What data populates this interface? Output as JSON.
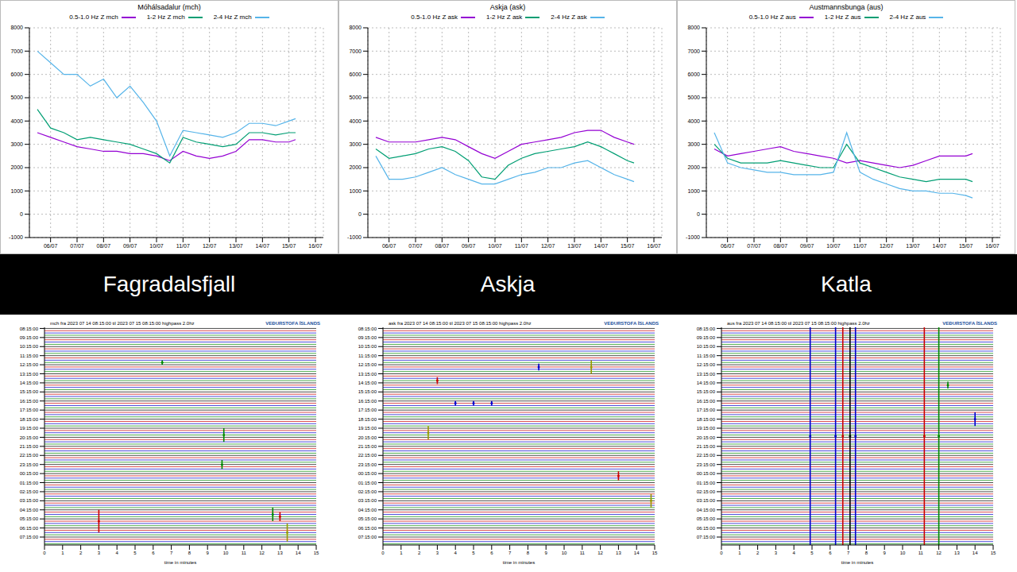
{
  "panel_labels": [
    "Fagradalsfjall",
    "Askja",
    "Katla"
  ],
  "chart_data": [
    {
      "type": "line",
      "title": "Móhálsadalur (mch)",
      "grid": true,
      "legend": "top",
      "x": [
        5.5,
        6,
        6.5,
        7,
        7.5,
        8,
        8.5,
        9,
        9.5,
        10,
        10.5,
        11,
        11.5,
        12,
        12.5,
        13,
        13.5,
        14,
        14.5,
        15,
        15.25
      ],
      "xlim": [
        5.2,
        16.3
      ],
      "xticks": [
        {
          "value": 6,
          "label": "06/07"
        },
        {
          "value": 7,
          "label": "07/07"
        },
        {
          "value": 8,
          "label": "08/07"
        },
        {
          "value": 9,
          "label": "09/07"
        },
        {
          "value": 10,
          "label": "10/07"
        },
        {
          "value": 11,
          "label": "11/07"
        },
        {
          "value": 12,
          "label": "12/07"
        },
        {
          "value": 13,
          "label": "13/07"
        },
        {
          "value": 14,
          "label": "14/07"
        },
        {
          "value": 15,
          "label": "15/07"
        },
        {
          "value": 16,
          "label": "16/07"
        }
      ],
      "ylim": [
        -1000,
        8000
      ],
      "yticks": [
        -1000,
        0,
        1000,
        2000,
        3000,
        4000,
        5000,
        6000,
        7000,
        8000
      ],
      "series": [
        {
          "name": "0.5-1.0 Hz Z mch",
          "color": "#9400d3",
          "values": [
            3500,
            3300,
            3100,
            2900,
            2800,
            2700,
            2700,
            2600,
            2600,
            2500,
            2300,
            2700,
            2500,
            2400,
            2500,
            2700,
            3200,
            3200,
            3100,
            3100,
            3200
          ]
        },
        {
          "name": "1-2 Hz Z mch",
          "color": "#009e73",
          "values": [
            4500,
            3700,
            3500,
            3200,
            3300,
            3200,
            3100,
            3000,
            2800,
            2600,
            2200,
            3300,
            3100,
            3000,
            2900,
            3000,
            3500,
            3500,
            3400,
            3500,
            3500
          ]
        },
        {
          "name": "2-4 Hz Z mch",
          "color": "#56b4e9",
          "values": [
            7000,
            6500,
            6000,
            6000,
            5500,
            5800,
            5000,
            5500,
            4800,
            4000,
            2500,
            3600,
            3500,
            3400,
            3300,
            3500,
            3900,
            3900,
            3800,
            4000,
            4100
          ]
        }
      ]
    },
    {
      "type": "line",
      "title": "Askja (ask)",
      "grid": true,
      "legend": "top",
      "x": [
        5.5,
        6,
        6.5,
        7,
        7.5,
        8,
        8.5,
        9,
        9.5,
        10,
        10.5,
        11,
        11.5,
        12,
        12.5,
        13,
        13.5,
        14,
        14.5,
        15,
        15.25
      ],
      "xlim": [
        5.2,
        16.3
      ],
      "xticks": [
        {
          "value": 6,
          "label": "06/07"
        },
        {
          "value": 7,
          "label": "07/07"
        },
        {
          "value": 8,
          "label": "08/07"
        },
        {
          "value": 9,
          "label": "09/07"
        },
        {
          "value": 10,
          "label": "10/07"
        },
        {
          "value": 11,
          "label": "11/07"
        },
        {
          "value": 12,
          "label": "12/07"
        },
        {
          "value": 13,
          "label": "13/07"
        },
        {
          "value": 14,
          "label": "14/07"
        },
        {
          "value": 15,
          "label": "15/07"
        },
        {
          "value": 16,
          "label": "16/07"
        }
      ],
      "ylim": [
        -1000,
        8000
      ],
      "yticks": [
        -1000,
        0,
        1000,
        2000,
        3000,
        4000,
        5000,
        6000,
        7000,
        8000
      ],
      "series": [
        {
          "name": "0.5-1.0 Hz Z ask",
          "color": "#9400d3",
          "values": [
            3300,
            3100,
            3100,
            3100,
            3200,
            3300,
            3200,
            2900,
            2600,
            2400,
            2700,
            3000,
            3100,
            3200,
            3300,
            3500,
            3600,
            3600,
            3300,
            3100,
            3000
          ]
        },
        {
          "name": "1-2 Hz Z ask",
          "color": "#009e73",
          "values": [
            2800,
            2400,
            2500,
            2600,
            2800,
            2900,
            2700,
            2300,
            1600,
            1500,
            2100,
            2400,
            2600,
            2700,
            2800,
            2900,
            3100,
            2900,
            2600,
            2300,
            2200
          ]
        },
        {
          "name": "2-4 Hz Z ask",
          "color": "#56b4e9",
          "values": [
            2500,
            1500,
            1500,
            1600,
            1800,
            2000,
            1700,
            1500,
            1300,
            1300,
            1500,
            1700,
            1800,
            2000,
            2000,
            2200,
            2300,
            2000,
            1700,
            1500,
            1400
          ]
        }
      ]
    },
    {
      "type": "line",
      "title": "Austmannsbunga (aus)",
      "grid": true,
      "legend": "top",
      "x": [
        5.5,
        6,
        6.5,
        7,
        7.5,
        8,
        8.5,
        9,
        9.5,
        10,
        10.5,
        11,
        11.5,
        12,
        12.5,
        13,
        13.5,
        14,
        14.5,
        15,
        15.25
      ],
      "xlim": [
        5.2,
        16.3
      ],
      "xticks": [
        {
          "value": 6,
          "label": "06/07"
        },
        {
          "value": 7,
          "label": "07/07"
        },
        {
          "value": 8,
          "label": "08/07"
        },
        {
          "value": 9,
          "label": "09/07"
        },
        {
          "value": 10,
          "label": "10/07"
        },
        {
          "value": 11,
          "label": "11/07"
        },
        {
          "value": 12,
          "label": "12/07"
        },
        {
          "value": 13,
          "label": "13/07"
        },
        {
          "value": 14,
          "label": "14/07"
        },
        {
          "value": 15,
          "label": "15/07"
        },
        {
          "value": 16,
          "label": "16/07"
        }
      ],
      "ylim": [
        -1000,
        8000
      ],
      "yticks": [
        -1000,
        0,
        1000,
        2000,
        3000,
        4000,
        5000,
        6000,
        7000,
        8000
      ],
      "series": [
        {
          "name": "0.5-1.0 Hz Z aus",
          "color": "#9400d3",
          "values": [
            2800,
            2500,
            2600,
            2700,
            2800,
            2900,
            2700,
            2600,
            2500,
            2400,
            2200,
            2300,
            2200,
            2100,
            2000,
            2100,
            2300,
            2500,
            2500,
            2500,
            2600
          ]
        },
        {
          "name": "1-2 Hz Z aus",
          "color": "#009e73",
          "values": [
            3000,
            2400,
            2200,
            2200,
            2200,
            2300,
            2200,
            2100,
            2000,
            2000,
            3000,
            2200,
            2000,
            1800,
            1600,
            1500,
            1400,
            1500,
            1500,
            1500,
            1400
          ]
        },
        {
          "name": "2-4 Hz Z aus",
          "color": "#56b4e9",
          "values": [
            3500,
            2200,
            2000,
            1900,
            1800,
            1800,
            1700,
            1700,
            1700,
            1800,
            3500,
            1800,
            1500,
            1300,
            1100,
            1000,
            1000,
            900,
            900,
            800,
            700
          ]
        }
      ]
    },
    {
      "type": "helicorder",
      "title": "mch fra 2023 07 14 08:15:00 til 2023 07 15 08:15:00 highpass 2.0hz",
      "logo": "VEÐURSTOFA ÍSLANDS",
      "xlabel": "time in minutes",
      "xlim": [
        0,
        15
      ],
      "xticks": [
        0,
        1,
        2,
        3,
        4,
        5,
        6,
        7,
        8,
        9,
        10,
        11,
        12,
        13,
        14,
        15
      ],
      "ylim": [
        -0.5,
        95.5
      ],
      "yticks": [
        {
          "value": 0,
          "label": "08:15:00"
        },
        {
          "value": 4,
          "label": "09:15:00"
        },
        {
          "value": 8,
          "label": "10:15:00"
        },
        {
          "value": 12,
          "label": "11:15:00"
        },
        {
          "value": 16,
          "label": "12:15:00"
        },
        {
          "value": 20,
          "label": "13:15:00"
        },
        {
          "value": 24,
          "label": "14:15:00"
        },
        {
          "value": 28,
          "label": "15:15:00"
        },
        {
          "value": 32,
          "label": "16:15:00"
        },
        {
          "value": 36,
          "label": "17:15:00"
        },
        {
          "value": 40,
          "label": "18:15:00"
        },
        {
          "value": 44,
          "label": "19:15:00"
        },
        {
          "value": 48,
          "label": "20:15:00"
        },
        {
          "value": 52,
          "label": "21:15:00"
        },
        {
          "value": 56,
          "label": "22:15:00"
        },
        {
          "value": 60,
          "label": "23:15:00"
        },
        {
          "value": 64,
          "label": "00:15:00"
        },
        {
          "value": 68,
          "label": "01:15:00"
        },
        {
          "value": 72,
          "label": "02:15:00"
        },
        {
          "value": 76,
          "label": "03:15:00"
        },
        {
          "value": 80,
          "label": "04:15:00"
        },
        {
          "value": 84,
          "label": "05:15:00"
        },
        {
          "value": 88,
          "label": "06:15:00"
        },
        {
          "value": 92,
          "label": "07:15:00"
        }
      ],
      "colors": [
        "#000000",
        "#cc0000",
        "#0000cc",
        "#008800"
      ],
      "events": [
        {
          "row": 15,
          "minute": 6.5,
          "amplitude": 1,
          "color": "#008800"
        },
        {
          "row": 47,
          "minute": 9.9,
          "amplitude": 3,
          "color": "#008800"
        },
        {
          "row": 60,
          "minute": 9.8,
          "amplitude": 2,
          "color": "#008800"
        },
        {
          "row": 85,
          "minute": 3,
          "amplitude": 5,
          "color": "#cc0000"
        },
        {
          "row": 82,
          "minute": 12.6,
          "amplitude": 3,
          "color": "#008800"
        },
        {
          "row": 83,
          "minute": 13,
          "amplitude": 2,
          "color": "#cc0000"
        },
        {
          "row": 90,
          "minute": 13.4,
          "amplitude": 4,
          "color": "#999900"
        }
      ]
    },
    {
      "type": "helicorder",
      "title": "ask fra 2023 07 14 08:15:00 til 2023 07 15 08:15:00 highpass 2.0hz",
      "logo": "VEÐURSTOFA ÍSLANDS",
      "xlabel": "time in minutes",
      "xlim": [
        0,
        15
      ],
      "xticks": [
        0,
        1,
        2,
        3,
        4,
        5,
        6,
        7,
        8,
        9,
        10,
        11,
        12,
        13,
        14,
        15
      ],
      "ylim": [
        -0.5,
        95.5
      ],
      "yticks": [
        {
          "value": 0,
          "label": "08:15:00"
        },
        {
          "value": 4,
          "label": "09:15:00"
        },
        {
          "value": 8,
          "label": "10:15:00"
        },
        {
          "value": 12,
          "label": "11:15:00"
        },
        {
          "value": 16,
          "label": "12:15:00"
        },
        {
          "value": 20,
          "label": "13:15:00"
        },
        {
          "value": 24,
          "label": "14:15:00"
        },
        {
          "value": 28,
          "label": "15:15:00"
        },
        {
          "value": 32,
          "label": "16:15:00"
        },
        {
          "value": 36,
          "label": "17:15:00"
        },
        {
          "value": 40,
          "label": "18:15:00"
        },
        {
          "value": 44,
          "label": "19:15:00"
        },
        {
          "value": 48,
          "label": "20:15:00"
        },
        {
          "value": 52,
          "label": "21:15:00"
        },
        {
          "value": 56,
          "label": "22:15:00"
        },
        {
          "value": 60,
          "label": "23:15:00"
        },
        {
          "value": 64,
          "label": "00:15:00"
        },
        {
          "value": 68,
          "label": "01:15:00"
        },
        {
          "value": 72,
          "label": "02:15:00"
        },
        {
          "value": 76,
          "label": "03:15:00"
        },
        {
          "value": 80,
          "label": "04:15:00"
        },
        {
          "value": 84,
          "label": "05:15:00"
        },
        {
          "value": 88,
          "label": "06:15:00"
        },
        {
          "value": 92,
          "label": "07:15:00"
        }
      ],
      "colors": [
        "#000000",
        "#cc0000",
        "#0000cc",
        "#008800"
      ],
      "events": [
        {
          "row": 17,
          "minute": 11.5,
          "amplitude": 3,
          "color": "#999900"
        },
        {
          "row": 17,
          "minute": 8.6,
          "amplitude": 1.5,
          "color": "#0000cc"
        },
        {
          "row": 23,
          "minute": 3,
          "amplitude": 1.5,
          "color": "#cc0000"
        },
        {
          "row": 33,
          "minute": 4,
          "amplitude": 1,
          "color": "#0000cc"
        },
        {
          "row": 33,
          "minute": 5,
          "amplitude": 1,
          "color": "#0000cc"
        },
        {
          "row": 33,
          "minute": 6,
          "amplitude": 1,
          "color": "#0000cc"
        },
        {
          "row": 46,
          "minute": 2.5,
          "amplitude": 3,
          "color": "#999900"
        },
        {
          "row": 65,
          "minute": 13,
          "amplitude": 2,
          "color": "#cc0000"
        },
        {
          "row": 76,
          "minute": 14.8,
          "amplitude": 3,
          "color": "#999900"
        }
      ]
    },
    {
      "type": "helicorder",
      "title": "aus fra 2023 07 14 08:15:00 til 2023 07 15 08:15:00 highpass 2.0hz",
      "logo": "VEÐURSTOFA ÍSLANDS",
      "xlabel": "time in minutes",
      "xlim": [
        0,
        15
      ],
      "xticks": [
        0,
        1,
        2,
        3,
        4,
        5,
        6,
        7,
        8,
        9,
        10,
        11,
        12,
        13,
        14,
        15
      ],
      "ylim": [
        -0.5,
        95.5
      ],
      "yticks": [
        {
          "value": 0,
          "label": "08:15:00"
        },
        {
          "value": 4,
          "label": "09:15:00"
        },
        {
          "value": 8,
          "label": "10:15:00"
        },
        {
          "value": 12,
          "label": "11:15:00"
        },
        {
          "value": 16,
          "label": "12:15:00"
        },
        {
          "value": 20,
          "label": "13:15:00"
        },
        {
          "value": 24,
          "label": "14:15:00"
        },
        {
          "value": 28,
          "label": "15:15:00"
        },
        {
          "value": 32,
          "label": "16:15:00"
        },
        {
          "value": 36,
          "label": "17:15:00"
        },
        {
          "value": 40,
          "label": "18:15:00"
        },
        {
          "value": 44,
          "label": "19:15:00"
        },
        {
          "value": 48,
          "label": "20:15:00"
        },
        {
          "value": 52,
          "label": "21:15:00"
        },
        {
          "value": 56,
          "label": "22:15:00"
        },
        {
          "value": 60,
          "label": "23:15:00"
        },
        {
          "value": 64,
          "label": "00:15:00"
        },
        {
          "value": 68,
          "label": "01:15:00"
        },
        {
          "value": 72,
          "label": "02:15:00"
        },
        {
          "value": 76,
          "label": "03:15:00"
        },
        {
          "value": 80,
          "label": "04:15:00"
        },
        {
          "value": 84,
          "label": "05:15:00"
        },
        {
          "value": 88,
          "label": "06:15:00"
        },
        {
          "value": 92,
          "label": "07:15:00"
        }
      ],
      "colors": [
        "#000000",
        "#cc0000",
        "#0000cc",
        "#008800"
      ],
      "events": [
        {
          "row": 47.5,
          "minute": 4.9,
          "amplitude": 48,
          "color": "#0000cc"
        },
        {
          "row": 47.5,
          "minute": 6.3,
          "amplitude": 48,
          "color": "#0000cc"
        },
        {
          "row": 47.5,
          "minute": 6.7,
          "amplitude": 48,
          "color": "#cc0000"
        },
        {
          "row": 47.5,
          "minute": 7.1,
          "amplitude": 48,
          "color": "#000000"
        },
        {
          "row": 47.5,
          "minute": 7.4,
          "amplitude": 48,
          "color": "#0000cc"
        },
        {
          "row": 47.5,
          "minute": 11.2,
          "amplitude": 48,
          "color": "#cc0000"
        },
        {
          "row": 47.5,
          "minute": 12,
          "amplitude": 48,
          "color": "#008800"
        },
        {
          "row": 25,
          "minute": 12.5,
          "amplitude": 1.5,
          "color": "#008800"
        },
        {
          "row": 40,
          "minute": 14,
          "amplitude": 3,
          "color": "#0000cc"
        }
      ]
    }
  ]
}
